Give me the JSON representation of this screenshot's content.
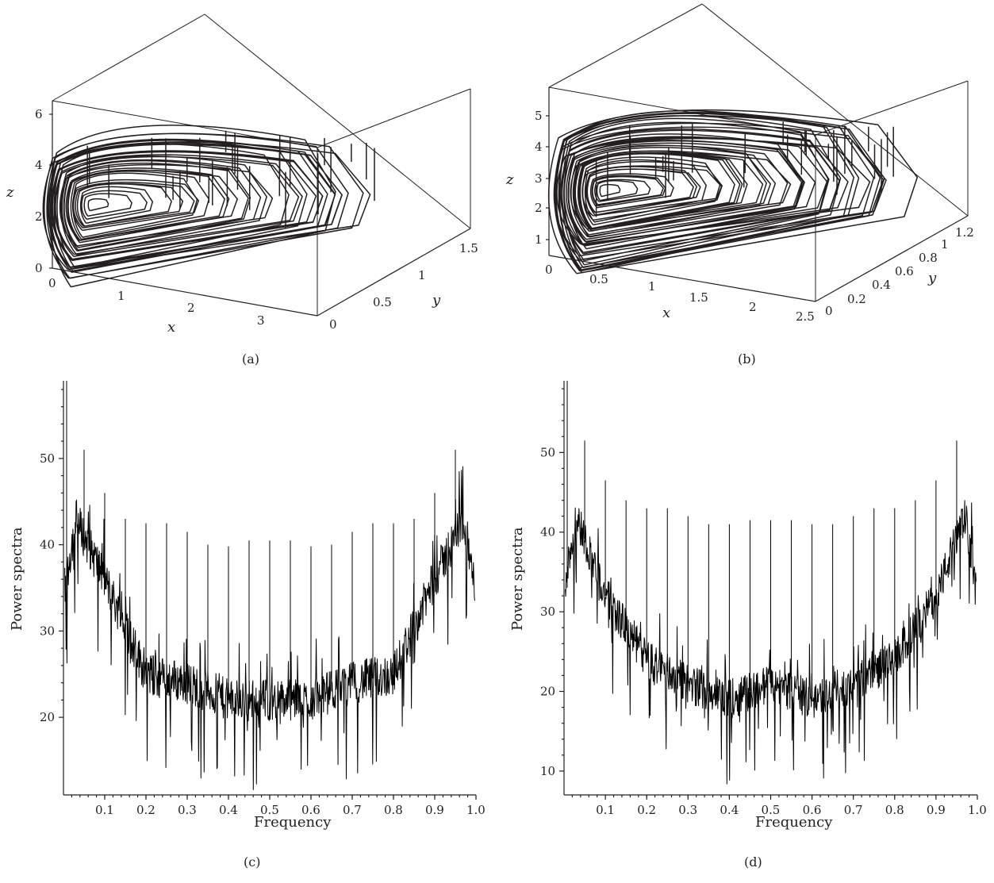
{
  "chart_data": [
    {
      "panel": "(a)",
      "type": "line",
      "subtype": "3d-phase-portrait",
      "xlabel": "x",
      "ylabel": "y",
      "zlabel": "z",
      "x_ticks": [
        "0",
        "1",
        "2",
        "3"
      ],
      "y_ticks": [
        "0",
        "0.5",
        "1",
        "1.5"
      ],
      "z_ticks": [
        "0",
        "2",
        "4",
        "6"
      ],
      "xlim": [
        0,
        3.8
      ],
      "ylim": [
        0,
        1.7
      ],
      "zlim": [
        0,
        6.5
      ],
      "color": "#231f20"
    },
    {
      "panel": "(b)",
      "type": "line",
      "subtype": "3d-phase-portrait",
      "xlabel": "x",
      "ylabel": "y",
      "zlabel": "z",
      "x_ticks": [
        "0",
        "0.5",
        "1",
        "1.5",
        "2",
        "2.5"
      ],
      "y_ticks": [
        "0",
        "0.2",
        "0.4",
        "0.6",
        "0.8",
        "1",
        "1.2"
      ],
      "z_ticks": [
        "1",
        "2",
        "3",
        "4",
        "5"
      ],
      "xlim": [
        0,
        2.5
      ],
      "ylim": [
        0,
        1.3
      ],
      "zlim": [
        0.5,
        5.9
      ],
      "color": "#231f20"
    },
    {
      "panel": "(c)",
      "type": "line",
      "xlabel": "Frequency",
      "ylabel": "Power spectra",
      "x_ticks": [
        "0.1",
        "0.2",
        "0.3",
        "0.4",
        "0.5",
        "0.6",
        "0.7",
        "0.8",
        "0.9",
        "1.0"
      ],
      "y_ticks": [
        "20",
        "30",
        "40",
        "50"
      ],
      "xlim": [
        0,
        1.0
      ],
      "ylim": [
        11,
        59
      ],
      "peak_frequencies": [
        0.05,
        0.1,
        0.15,
        0.2,
        0.25,
        0.3,
        0.35,
        0.4,
        0.45,
        0.5,
        0.55,
        0.6,
        0.65,
        0.7,
        0.75,
        0.8,
        0.85,
        0.9,
        0.95
      ],
      "peak_values": [
        51,
        46,
        43,
        42.5,
        42.5,
        41.5,
        40,
        39.8,
        40.5,
        40.5,
        40.5,
        39.8,
        40,
        41.5,
        42.5,
        42.5,
        43,
        46,
        51
      ],
      "baseline": {
        "f": [
          0.0,
          0.03,
          0.1,
          0.2,
          0.3,
          0.4,
          0.5,
          0.6,
          0.7,
          0.8,
          0.9,
          0.97,
          1.0
        ],
        "p": [
          34,
          43,
          36,
          25,
          24,
          22,
          22,
          22,
          24,
          25,
          36,
          43,
          34
        ]
      },
      "color": "#000000"
    },
    {
      "panel": "(d)",
      "type": "line",
      "xlabel": "Frequency",
      "ylabel": "Power spectra",
      "x_ticks": [
        "0.1",
        "0.2",
        "0.3",
        "0.4",
        "0.5",
        "0.6",
        "0.7",
        "0.8",
        "0.9",
        "1.0"
      ],
      "y_ticks": [
        "10",
        "20",
        "30",
        "40",
        "50"
      ],
      "xlim": [
        0,
        1.0
      ],
      "ylim": [
        7,
        59
      ],
      "peak_frequencies": [
        0.05,
        0.1,
        0.15,
        0.2,
        0.25,
        0.3,
        0.35,
        0.4,
        0.45,
        0.5,
        0.55,
        0.6,
        0.65,
        0.7,
        0.75,
        0.8,
        0.85,
        0.9,
        0.95
      ],
      "peak_values": [
        51.5,
        46.5,
        44,
        43,
        43,
        42,
        41,
        41,
        41.5,
        41.5,
        41.5,
        41,
        41,
        42,
        43,
        43,
        44,
        46.5,
        51.5
      ],
      "baseline": {
        "f": [
          0.0,
          0.03,
          0.1,
          0.2,
          0.3,
          0.4,
          0.5,
          0.6,
          0.7,
          0.8,
          0.9,
          0.97,
          1.0
        ],
        "p": [
          33,
          42,
          32,
          24,
          21,
          19,
          21,
          19,
          21,
          24,
          32,
          42,
          33
        ]
      },
      "color": "#000000"
    }
  ],
  "captions": [
    "(a)",
    "(b)",
    "(c)",
    "(d)"
  ]
}
